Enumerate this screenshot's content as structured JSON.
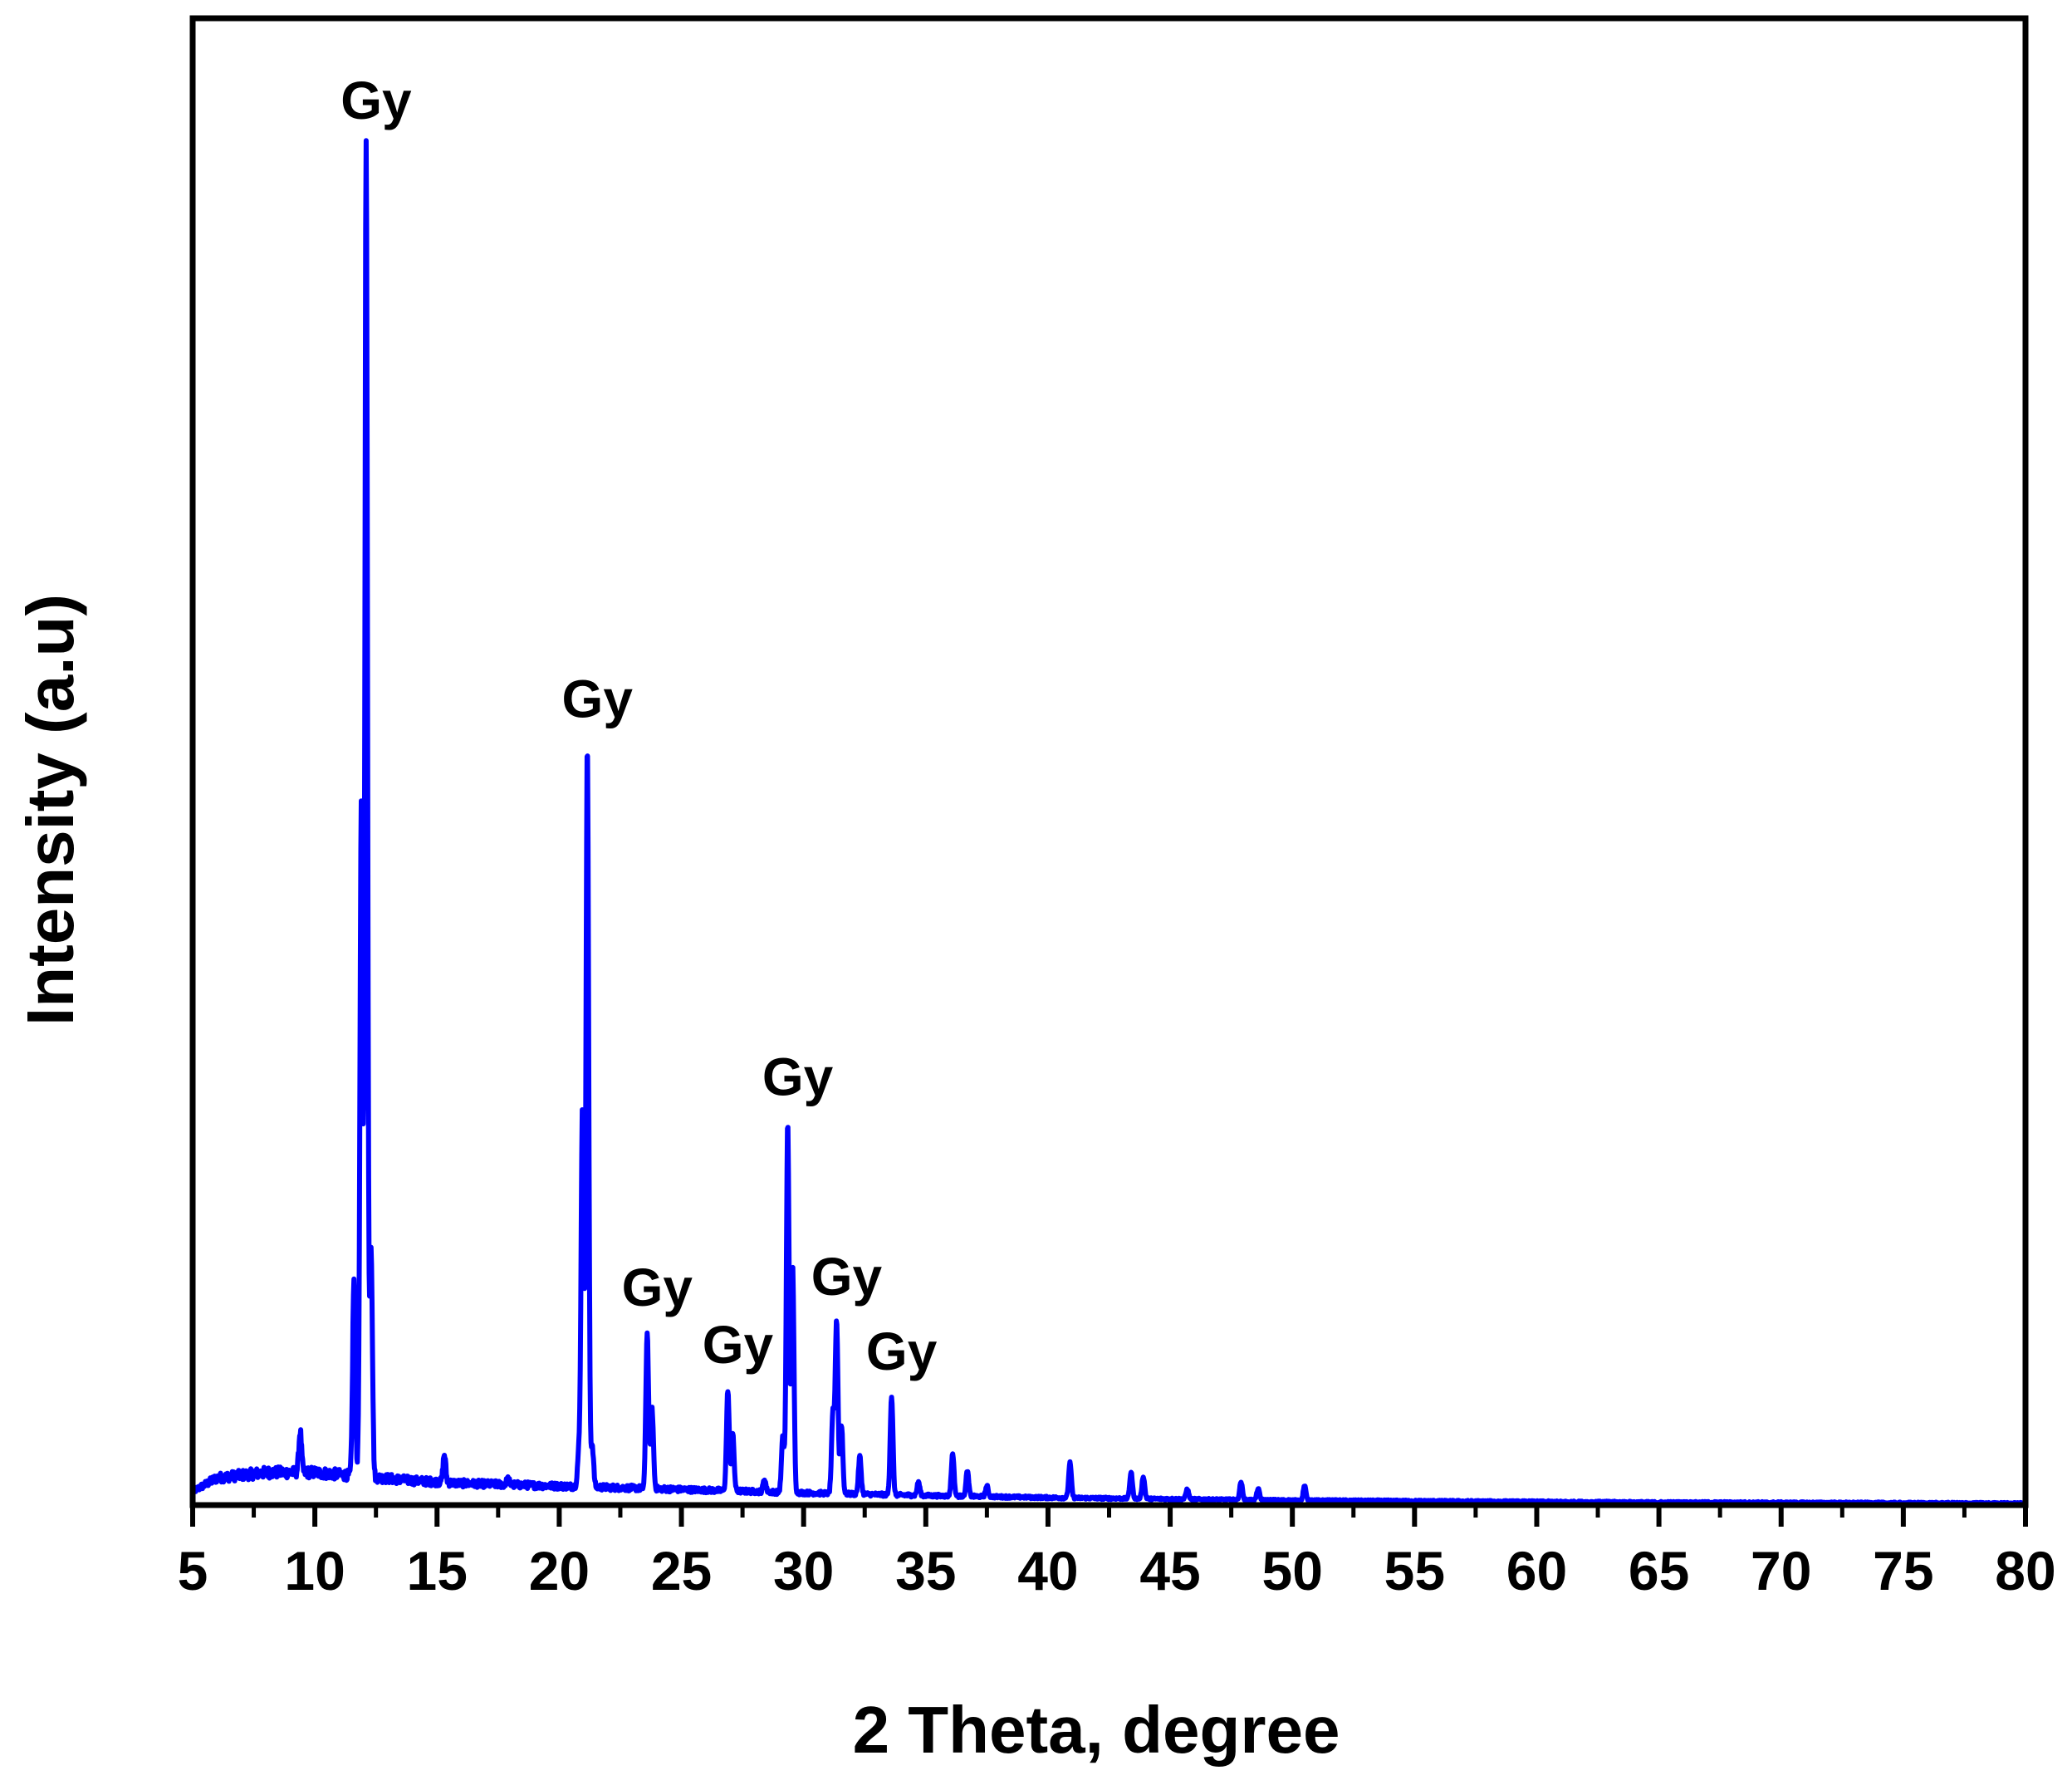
{
  "chart_data": {
    "type": "line",
    "title": "",
    "xlabel": "2 Theta, degree",
    "ylabel": "Intensity (a.u)",
    "xlim": [
      5,
      80
    ],
    "ylim": [
      0,
      100
    ],
    "xticks": [
      5,
      10,
      15,
      20,
      25,
      30,
      35,
      40,
      45,
      50,
      55,
      60,
      65,
      70,
      75,
      80
    ],
    "yticks_shown": false,
    "grid": false,
    "legend": "none",
    "series": [
      {
        "color": "#0000ff",
        "baseline": [
          [
            5,
            1.0
          ],
          [
            6,
            2.0
          ],
          [
            8,
            2.4
          ],
          [
            10,
            2.4
          ],
          [
            12,
            2.1
          ],
          [
            14,
            1.8
          ],
          [
            16,
            1.6
          ],
          [
            18,
            1.5
          ],
          [
            20,
            1.4
          ],
          [
            22,
            1.3
          ],
          [
            24,
            1.2
          ],
          [
            26,
            1.1
          ],
          [
            28,
            1.0
          ],
          [
            30,
            0.9
          ],
          [
            35,
            0.7
          ],
          [
            40,
            0.55
          ],
          [
            45,
            0.45
          ],
          [
            50,
            0.35
          ],
          [
            55,
            0.3
          ],
          [
            60,
            0.25
          ],
          [
            65,
            0.2
          ],
          [
            70,
            0.18
          ],
          [
            75,
            0.15
          ],
          [
            80,
            0.12
          ]
        ],
        "peaks": [
          {
            "x": 9.4,
            "y": 5.4
          },
          {
            "x": 11.6,
            "y": 16.5
          },
          {
            "x": 11.9,
            "y": 51.3
          },
          {
            "x": 12.1,
            "y": 100.0
          },
          {
            "x": 12.3,
            "y": 19.0
          },
          {
            "x": 15.3,
            "y": 3.7
          },
          {
            "x": 17.9,
            "y": 1.9
          },
          {
            "x": 20.8,
            "y": 3.8
          },
          {
            "x": 20.95,
            "y": 29.5
          },
          {
            "x": 21.15,
            "y": 56.0
          },
          {
            "x": 21.35,
            "y": 4.4
          },
          {
            "x": 23.6,
            "y": 12.7
          },
          {
            "x": 23.8,
            "y": 7.0
          },
          {
            "x": 26.9,
            "y": 8.5
          },
          {
            "x": 27.1,
            "y": 5.2
          },
          {
            "x": 28.4,
            "y": 1.9
          },
          {
            "x": 29.15,
            "y": 5.0
          },
          {
            "x": 29.35,
            "y": 28.2
          },
          {
            "x": 29.55,
            "y": 17.6
          },
          {
            "x": 31.2,
            "y": 6.7
          },
          {
            "x": 31.35,
            "y": 13.5
          },
          {
            "x": 31.55,
            "y": 5.9
          },
          {
            "x": 32.3,
            "y": 3.6
          },
          {
            "x": 33.6,
            "y": 8.0
          },
          {
            "x": 34.7,
            "y": 1.7
          },
          {
            "x": 36.1,
            "y": 3.8
          },
          {
            "x": 36.7,
            "y": 2.5
          },
          {
            "x": 37.5,
            "y": 1.4
          },
          {
            "x": 40.9,
            "y": 3.1
          },
          {
            "x": 43.4,
            "y": 2.4
          },
          {
            "x": 43.9,
            "y": 2.1
          },
          {
            "x": 45.7,
            "y": 1.2
          },
          {
            "x": 47.9,
            "y": 1.7
          },
          {
            "x": 48.6,
            "y": 1.2
          },
          {
            "x": 50.5,
            "y": 1.4
          }
        ]
      }
    ],
    "annotations": [
      {
        "text": "Gy",
        "x": 12.1,
        "y": 100.0
      },
      {
        "text": "Gy",
        "x": 21.15,
        "y": 56.0
      },
      {
        "text": "Gy",
        "x": 23.6,
        "y": 12.7
      },
      {
        "text": "Gy",
        "x": 26.9,
        "y": 8.5
      },
      {
        "text": "Gy",
        "x": 29.35,
        "y": 28.2
      },
      {
        "text": "Gy",
        "x": 31.35,
        "y": 13.5
      },
      {
        "text": "Gy",
        "x": 33.6,
        "y": 8.0
      }
    ]
  }
}
